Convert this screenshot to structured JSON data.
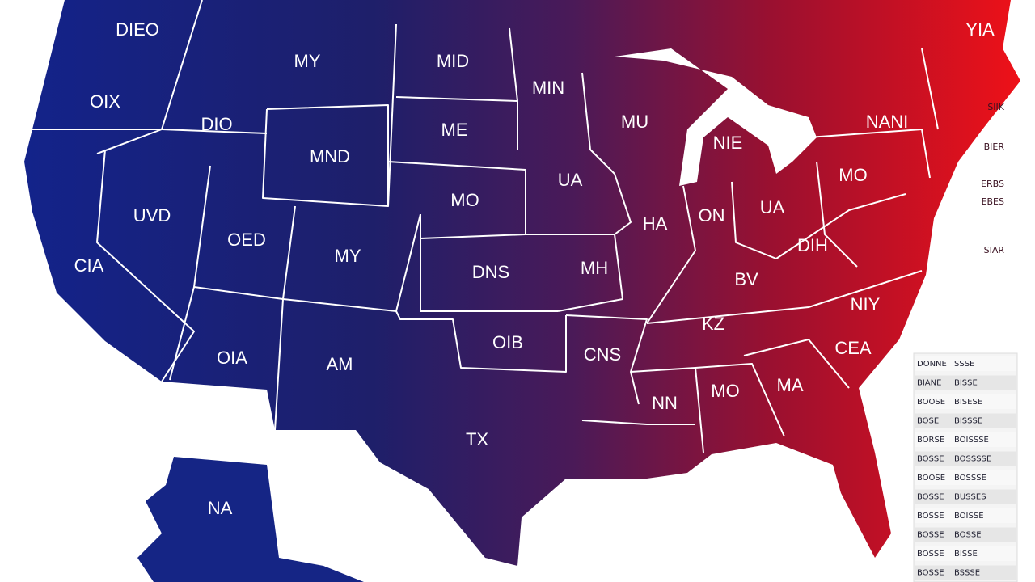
{
  "labels": [
    "DIEO",
    "OIX",
    "DIO",
    "MY",
    "MID",
    "MIN",
    "ME",
    "MU",
    "MND",
    "NIE",
    "UA",
    "MO",
    "UVD",
    "OED",
    "MY",
    "HA",
    "ON",
    "UA",
    "MO",
    "NANI",
    "YIA",
    "CIA",
    "DNS",
    "MH",
    "DIH",
    "BV",
    "NIY",
    "KZ",
    "OIA",
    "AM",
    "OIB",
    "CNS",
    "CEA",
    "MO",
    "MA",
    "NN",
    "TX",
    "NA"
  ],
  "side_labels": [
    "SIIK",
    "BIER",
    "ERBS",
    "EBES",
    "SIAR"
  ],
  "legend": {
    "rows": [
      [
        "DONNE",
        "SSSE"
      ],
      [
        "BIANE",
        "BISSE"
      ],
      [
        "BOOSE",
        "BISESE"
      ],
      [
        "BOSE",
        "BISSSE"
      ],
      [
        "BORSE",
        "BOISSSE"
      ],
      [
        "BOSSE",
        "BOSSSSE"
      ],
      [
        "BOOSE",
        "BOSSSE"
      ],
      [
        "BOSSE",
        "BUSSES"
      ],
      [
        "BOSSE",
        "BOISSE"
      ],
      [
        "BOSSE",
        "BOSSE"
      ],
      [
        "BOSSE",
        "BISSE"
      ],
      [
        "BOSSE",
        "BSSSE"
      ]
    ]
  }
}
